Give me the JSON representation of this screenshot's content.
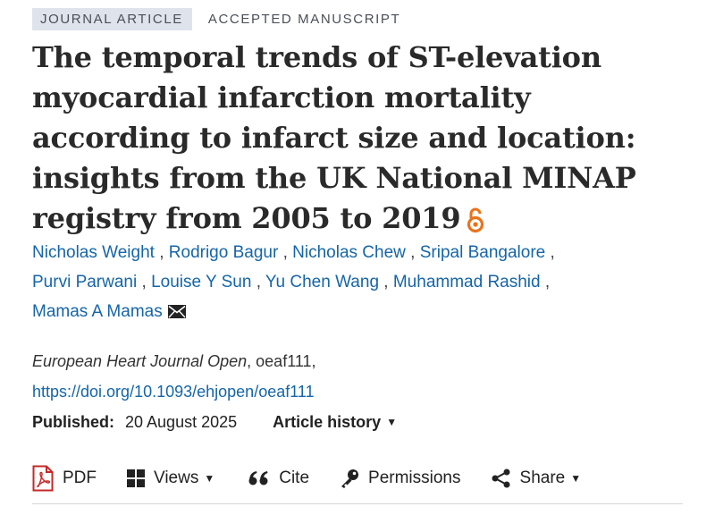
{
  "header": {
    "article_type": "JOURNAL ARTICLE",
    "status": "ACCEPTED MANUSCRIPT"
  },
  "article": {
    "title": "The temporal trends of ST-elevation myocardial infarction mortality according to infarct size and location: insights from the UK National MINAP registry from 2005 to 2019",
    "open_access_icon": "open-access-icon",
    "open_access_color": "#e8731c"
  },
  "authors": [
    "Nicholas Weight",
    "Rodrigo Bagur",
    "Nicholas Chew",
    "Sripal Bangalore",
    "Purvi Parwani",
    "Louise Y Sun",
    "Yu Chen Wang",
    "Muhammad Rashid",
    "Mamas A Mamas"
  ],
  "author_separator": ",",
  "author_link_color": "#1565a8",
  "publication": {
    "journal": "European Heart Journal Open",
    "article_id": ", oeaf111,",
    "doi": "https://doi.org/10.1093/ehjopen/oeaf111",
    "published_label": "Published:",
    "published_date": "20 August 2025",
    "history_label": "Article history"
  },
  "toolbar": {
    "pdf": "PDF",
    "views": "Views",
    "cite": "Cite",
    "permissions": "Permissions",
    "share": "Share"
  }
}
